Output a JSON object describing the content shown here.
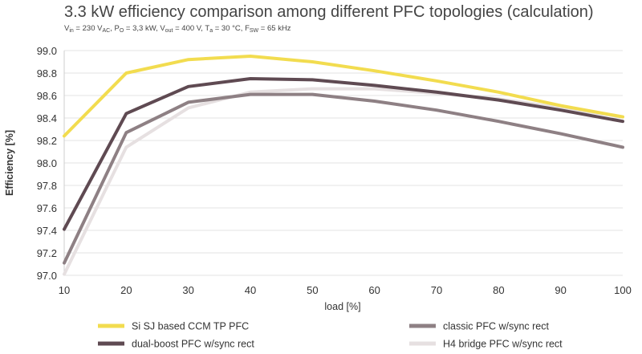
{
  "chart_data": {
    "type": "line",
    "title": "3.3 kW efficiency comparison among different PFC topologies (calculation)",
    "subtitle": {
      "vin": "V",
      "vin_sub": "in",
      "vin_val": " = 230 V",
      "vin_unit_sub": "AC",
      "po": ", P",
      "po_sub": "O",
      "po_val": " = 3,3 kW, V",
      "vout_sub": "out",
      "vout_val": " = 400 V, T",
      "ta_sub": "a",
      "ta_val": " = 30 °C, F",
      "fsw_sub": "SW",
      "fsw_val": " = 65 kHz"
    },
    "xlabel": "load [%]",
    "ylabel": "Efficiency [%]",
    "xlim": [
      10,
      100
    ],
    "ylim": [
      97.0,
      99.0
    ],
    "x_ticks": [
      "10",
      "20",
      "30",
      "40",
      "50",
      "60",
      "70",
      "80",
      "90",
      "100"
    ],
    "y_ticks": [
      "97.0",
      "97.2",
      "97.4",
      "97.6",
      "97.8",
      "98.0",
      "98.2",
      "98.4",
      "98.6",
      "98.8",
      "99.0"
    ],
    "grid": "horizontal",
    "legend_position": "bottom",
    "x": [
      10,
      20,
      30,
      40,
      50,
      60,
      70,
      80,
      90,
      100
    ],
    "series": [
      {
        "name": "Si SJ based CCM TP PFC",
        "color": "#f2dc4f",
        "values": [
          98.24,
          98.8,
          98.92,
          98.95,
          98.9,
          98.82,
          98.73,
          98.63,
          98.51,
          98.41
        ]
      },
      {
        "name": "dual-boost PFC w/sync rect",
        "color": "#5f4a52",
        "values": [
          97.41,
          98.44,
          98.68,
          98.75,
          98.74,
          98.69,
          98.63,
          98.56,
          98.47,
          98.37
        ]
      },
      {
        "name": "classic PFC w/sync rect",
        "color": "#8e8084",
        "values": [
          97.11,
          98.27,
          98.54,
          98.61,
          98.61,
          98.55,
          98.47,
          98.37,
          98.26,
          98.14
        ]
      },
      {
        "name": "H4 bridge PFC w/sync rect",
        "color": "#e6e0e1",
        "values": [
          97.01,
          98.14,
          98.49,
          98.63,
          98.66,
          98.66,
          98.62,
          98.57,
          98.49,
          98.41
        ]
      }
    ]
  }
}
